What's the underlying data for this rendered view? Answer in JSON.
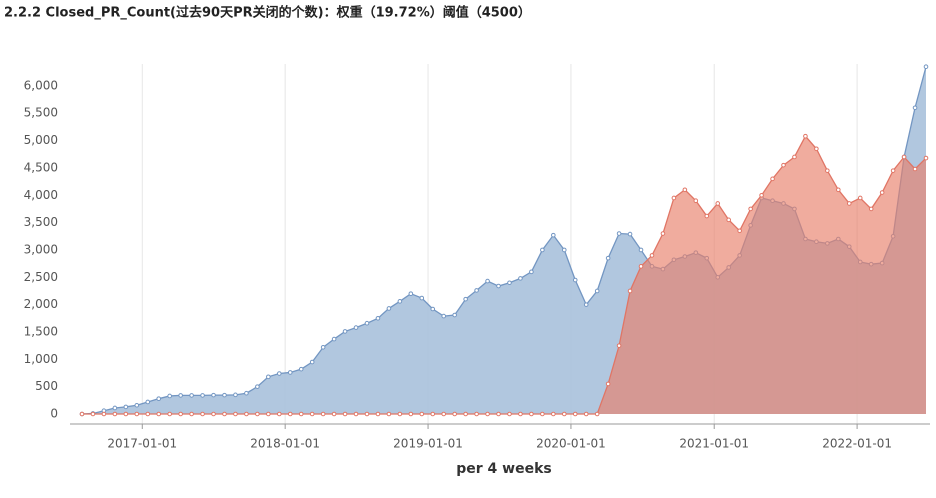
{
  "chart_data": {
    "type": "area",
    "title": "2.2.2 Closed_PR_Count(过去90天PR关闭的个数)：权重（19.72%）阈值（4500）",
    "x_label": "per 4 weeks",
    "x": [
      "2016-07-31",
      "2016-08-28",
      "2016-09-25",
      "2016-10-23",
      "2016-11-20",
      "2016-12-18",
      "2017-01-15",
      "2017-02-12",
      "2017-03-12",
      "2017-04-09",
      "2017-05-07",
      "2017-06-04",
      "2017-07-02",
      "2017-07-30",
      "2017-08-27",
      "2017-09-24",
      "2017-10-22",
      "2017-11-19",
      "2017-12-17",
      "2018-01-14",
      "2018-02-11",
      "2018-03-11",
      "2018-04-08",
      "2018-05-06",
      "2018-06-03",
      "2018-07-01",
      "2018-07-29",
      "2018-08-26",
      "2018-09-23",
      "2018-10-21",
      "2018-11-18",
      "2018-12-16",
      "2019-01-13",
      "2019-02-10",
      "2019-03-10",
      "2019-04-07",
      "2019-05-05",
      "2019-06-02",
      "2019-06-30",
      "2019-07-28",
      "2019-08-25",
      "2019-09-22",
      "2019-10-20",
      "2019-11-17",
      "2019-12-15",
      "2020-01-12",
      "2020-02-09",
      "2020-03-08",
      "2020-04-05",
      "2020-05-03",
      "2020-05-31",
      "2020-06-28",
      "2020-07-26",
      "2020-08-23",
      "2020-09-20",
      "2020-10-18",
      "2020-11-15",
      "2020-12-13",
      "2021-01-10",
      "2021-02-07",
      "2021-03-07",
      "2021-04-04",
      "2021-05-02",
      "2021-05-30",
      "2021-06-27",
      "2021-07-25",
      "2021-08-22",
      "2021-09-19",
      "2021-10-17",
      "2021-11-14",
      "2021-12-12",
      "2022-01-09",
      "2022-02-06",
      "2022-03-06",
      "2022-04-03",
      "2022-05-01",
      "2022-05-29",
      "2022-06-26"
    ],
    "series": [
      {
        "color": "#7396c2",
        "fill": "#a9c1dc",
        "values": [
          0,
          10,
          60,
          110,
          130,
          160,
          220,
          280,
          330,
          340,
          340,
          340,
          345,
          345,
          350,
          380,
          500,
          680,
          740,
          760,
          820,
          950,
          1220,
          1370,
          1510,
          1580,
          1660,
          1750,
          1930,
          2060,
          2200,
          2120,
          1920,
          1790,
          1810,
          2100,
          2260,
          2430,
          2340,
          2400,
          2480,
          2600,
          3000,
          3270,
          3000,
          2450,
          2000,
          2250,
          2850,
          3300,
          3290,
          3000,
          2700,
          2650,
          2820,
          2880,
          2950,
          2850,
          2500,
          2680,
          2900,
          3450,
          3950,
          3900,
          3850,
          3750,
          3200,
          3150,
          3120,
          3200,
          3060,
          2780,
          2740,
          2760,
          3250,
          4700,
          5600,
          6350
        ]
      },
      {
        "color": "#e07565",
        "fill": "#e8806a",
        "values": [
          0,
          0,
          0,
          0,
          0,
          0,
          0,
          0,
          0,
          0,
          0,
          0,
          0,
          0,
          0,
          0,
          0,
          0,
          0,
          0,
          0,
          0,
          0,
          0,
          0,
          0,
          0,
          0,
          0,
          0,
          0,
          0,
          0,
          0,
          0,
          0,
          0,
          0,
          0,
          0,
          0,
          0,
          0,
          0,
          0,
          0,
          0,
          0,
          550,
          1250,
          2250,
          2700,
          2900,
          3300,
          3950,
          4100,
          3900,
          3620,
          3850,
          3550,
          3350,
          3750,
          4000,
          4300,
          4550,
          4700,
          5080,
          4850,
          4450,
          4100,
          3850,
          3950,
          3750,
          4050,
          4450,
          4700,
          4480,
          4680
        ]
      }
    ],
    "xlim": [
      "2016-07-31",
      "2022-06-26"
    ],
    "xticks": [
      "2017-01-01",
      "2018-01-01",
      "2019-01-01",
      "2020-01-01",
      "2021-01-01",
      "2022-01-01"
    ],
    "ylim": [
      0,
      6400
    ],
    "yticks": [
      0,
      {
        "value": 500,
        "label": "500"
      },
      {
        "value": 1000,
        "label": "1,000"
      },
      {
        "value": 1500,
        "label": "1,500"
      },
      {
        "value": 2000,
        "label": "2,000"
      },
      {
        "value": 2500,
        "label": "2,500"
      },
      {
        "value": 3000,
        "label": "3,000"
      },
      {
        "value": 3500,
        "label": "3,500"
      },
      {
        "value": 4000,
        "label": "4,000"
      },
      {
        "value": 4500,
        "label": "4,500"
      },
      {
        "value": 5000,
        "label": "5,000"
      },
      {
        "value": 5500,
        "label": "5,500"
      },
      {
        "value": 6000,
        "label": "6,000"
      }
    ],
    "grid": "x"
  }
}
